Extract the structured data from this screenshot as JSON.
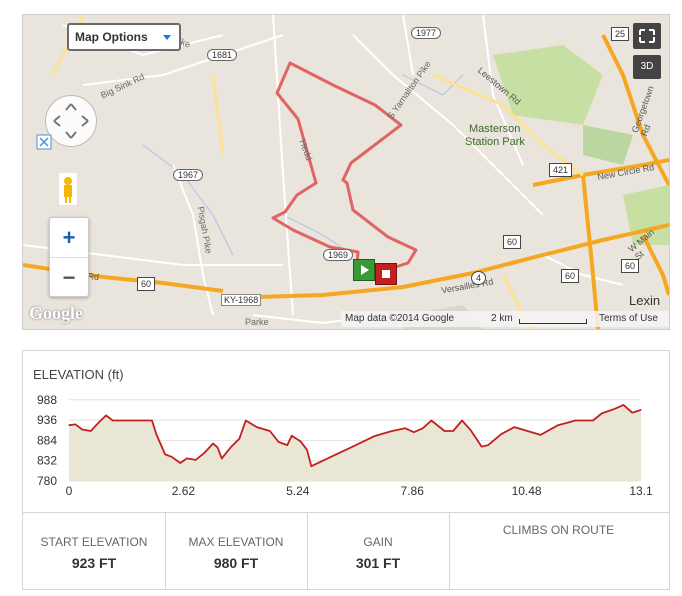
{
  "map": {
    "map_options_label": "Map Options",
    "btn_3d": "3D",
    "attribution": "Map data ©2014 Google",
    "scale": "2 km",
    "terms": "Terms of Use",
    "google_logo": "Google",
    "zoom_in": "+",
    "zoom_out": "−",
    "labels": {
      "masterson": "Masterson",
      "station_park": "Station Park",
      "big_sink_rd": "Big Sink Rd",
      "pisgah_pike": "Pisgah Pike",
      "versailles_rd": "Versailles Rd",
      "new_circle_rd": "New Circle Rd",
      "leestown_rd": "Leestown Rd",
      "yarnallton_pike": "S Yarnallton Pike",
      "georgetown_rd": "Georgetown Rd",
      "w_main_st": "W Main St",
      "parkers": "Parke",
      "lexin": "Lexin",
      "pike": "Pike",
      "hedd": "Hedd",
      "on_rd": "on Rd",
      "ky1968": "KY-1968"
    },
    "route_shields": [
      "1681",
      "1977",
      "1967",
      "1969",
      "421",
      "60",
      "60",
      "4",
      "60",
      "60",
      "25"
    ],
    "colors": {
      "route": "#e06464",
      "start": "#3a9a3a",
      "end": "#c0211f",
      "highway": "#f5a623"
    }
  },
  "elevation": {
    "title": "ELEVATION (ft)",
    "stats": [
      {
        "label": "START ELEVATION",
        "value": "923 FT"
      },
      {
        "label": "MAX ELEVATION",
        "value": "980 FT"
      },
      {
        "label": "GAIN",
        "value": "301 FT"
      },
      {
        "label": "CLIMBS ON ROUTE",
        "value": ""
      }
    ]
  },
  "chart_data": {
    "type": "area",
    "title": "ELEVATION (ft)",
    "ylim": [
      780,
      990
    ],
    "xlim": [
      0,
      13.1
    ],
    "y_ticks": [
      "988",
      "936",
      "884",
      "832",
      "780"
    ],
    "x_ticks": [
      "0",
      "2.62",
      "5.24",
      "7.86",
      "10.48",
      "13.1"
    ],
    "grid": true,
    "series": [
      {
        "x": [
          0,
          0.15,
          0.3,
          0.5,
          0.7,
          0.85,
          1.0,
          1.2,
          1.4,
          1.6,
          1.9,
          2.0,
          2.2,
          2.35,
          2.55,
          2.7,
          2.9,
          3.1,
          3.3,
          3.4,
          3.5,
          3.7,
          3.9,
          4.05,
          4.3,
          4.6,
          4.8,
          5.0,
          5.1,
          5.3,
          5.45,
          5.55,
          6.0,
          6.5,
          7.0,
          7.4,
          7.7,
          7.9,
          8.1,
          8.3,
          8.6,
          8.8,
          9.0,
          9.2,
          9.45,
          9.6,
          9.9,
          10.2,
          10.5,
          10.8,
          11.2,
          11.6,
          12.0,
          12.2,
          12.5,
          12.7,
          12.9,
          13.1
        ],
        "y": [
          923,
          925,
          912,
          908,
          932,
          948,
          935,
          935,
          935,
          935,
          935,
          900,
          848,
          842,
          826,
          838,
          834,
          852,
          876,
          866,
          838,
          866,
          888,
          935,
          918,
          908,
          880,
          872,
          896,
          882,
          860,
          818,
          842,
          868,
          895,
          908,
          915,
          905,
          915,
          935,
          908,
          908,
          935,
          910,
          868,
          872,
          900,
          918,
          908,
          898,
          923,
          935,
          935,
          953,
          965,
          975,
          955,
          962
        ]
      }
    ]
  }
}
